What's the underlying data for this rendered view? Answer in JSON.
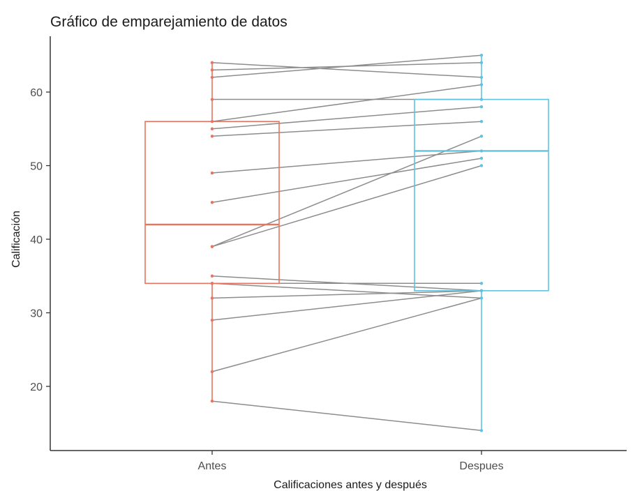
{
  "chart_data": {
    "type": "box",
    "title": "Gráfico de emparejamiento de datos",
    "xlabel": "Calificaciones antes y después",
    "ylabel": "Calificación",
    "categories": [
      "Antes",
      "Despues"
    ],
    "colors": {
      "Antes": "#e8735f",
      "Despues": "#5fc3df",
      "lines": "#8c8c8c",
      "axis": "#333333"
    },
    "ylim": [
      12,
      67
    ],
    "yticks": [
      20,
      30,
      40,
      50,
      60
    ],
    "grid": false,
    "legend": "none",
    "boxes": [
      {
        "category": "Antes",
        "q1": 34,
        "median": 42,
        "q3": 56,
        "whisker_low": 18,
        "whisker_high": 64
      },
      {
        "category": "Despues",
        "q1": 33,
        "median": 52,
        "q3": 59,
        "whisker_low": 14,
        "whisker_high": 65
      }
    ],
    "pairs": [
      [
        64,
        62
      ],
      [
        63,
        64
      ],
      [
        62,
        65
      ],
      [
        59,
        59
      ],
      [
        56,
        61
      ],
      [
        55,
        58
      ],
      [
        54,
        56
      ],
      [
        49,
        52
      ],
      [
        45,
        51
      ],
      [
        39,
        50
      ],
      [
        39,
        54
      ],
      [
        35,
        33
      ],
      [
        34,
        34
      ],
      [
        34,
        32
      ],
      [
        32,
        33
      ],
      [
        29,
        33
      ],
      [
        22,
        32
      ],
      [
        18,
        14
      ]
    ]
  }
}
